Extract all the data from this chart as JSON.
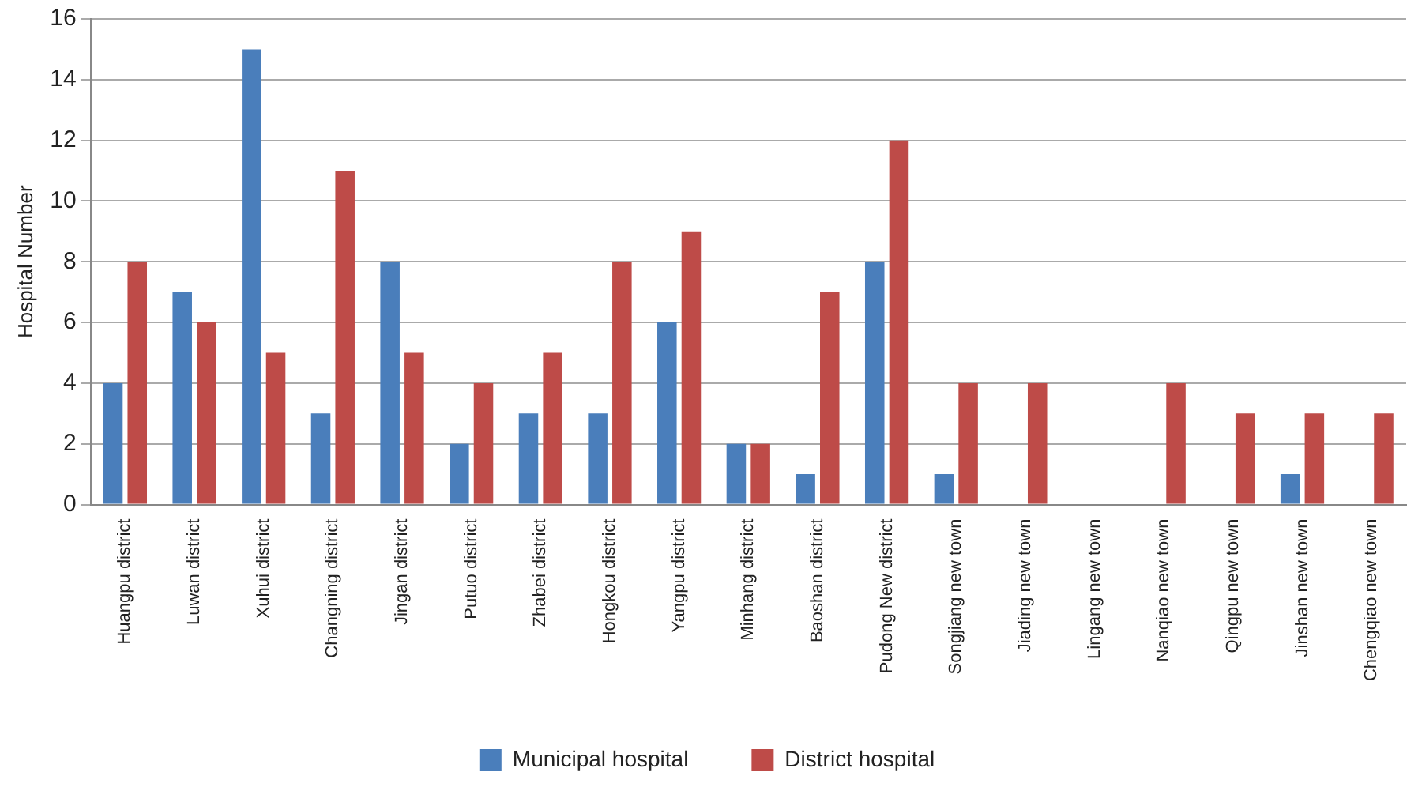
{
  "chart_data": {
    "type": "bar",
    "ylabel": "Hospital Number",
    "categories": [
      "Huangpu district",
      "Luwan district",
      "Xuhui district",
      "Changning district",
      "Jingan district",
      "Putuo district",
      "Zhabei district",
      "Hongkou district",
      "Yangpu district",
      "Minhang district",
      "Baoshan district",
      "Pudong New district",
      "Songjiang new town",
      "Jiading new town",
      "Lingang new town",
      "Nanqiao new town",
      "Qingpu new town",
      "Jinshan new town",
      "Chengqiao new town"
    ],
    "series": [
      {
        "name": "Municipal hospital",
        "color": "#4a7ebb",
        "values": [
          4,
          7,
          15,
          3,
          8,
          2,
          3,
          3,
          6,
          2,
          1,
          8,
          1,
          0,
          0,
          0,
          0,
          1,
          0
        ]
      },
      {
        "name": "District hospital",
        "color": "#be4b48",
        "values": [
          8,
          6,
          5,
          11,
          5,
          4,
          5,
          8,
          9,
          2,
          7,
          12,
          4,
          4,
          0,
          4,
          3,
          3,
          3
        ]
      }
    ],
    "ylim": [
      0,
      16
    ],
    "yticks": [
      0,
      2,
      4,
      6,
      8,
      10,
      12,
      14,
      16
    ],
    "grid": "y",
    "legend": "bottom"
  }
}
